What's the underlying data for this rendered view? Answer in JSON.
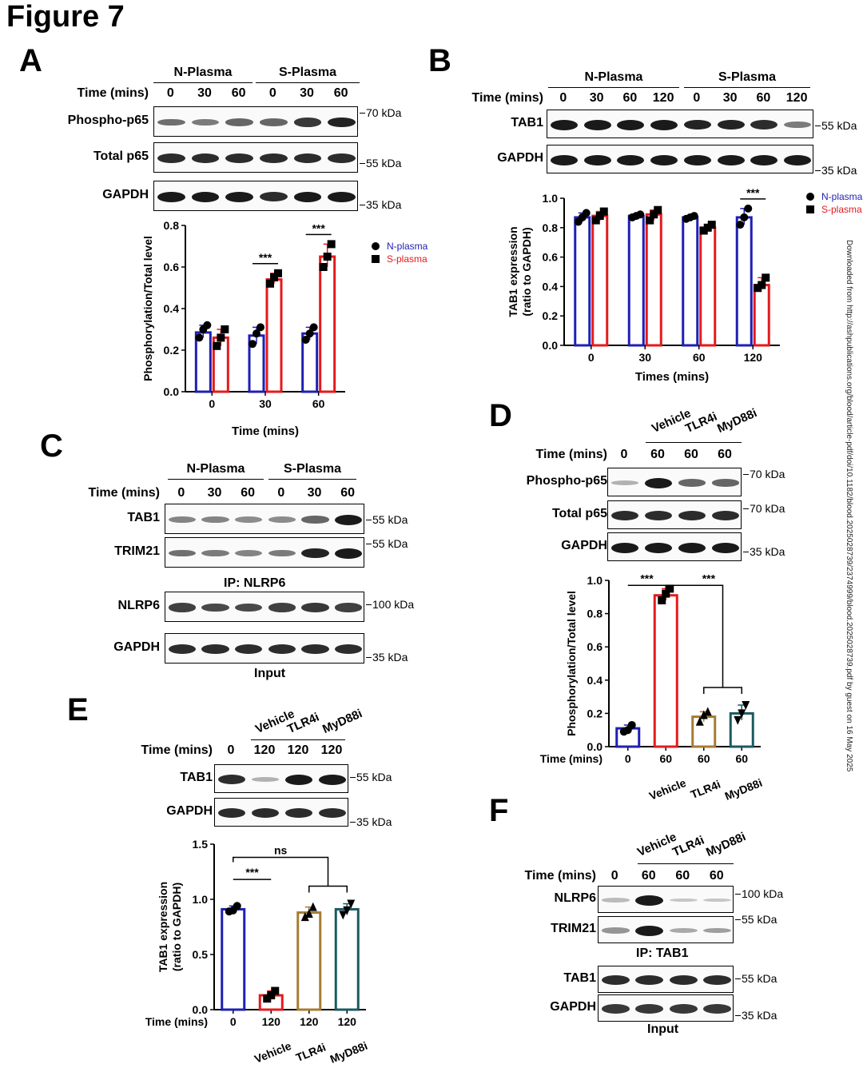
{
  "figure_title": "Figure 7",
  "side_text": "Downloaded from http://ashpublications.org/blood/article-pdf/doi/10.1182/blood.2025028739/2374999/blood.2025028739.pdf by guest on 16 May 2025",
  "panels": {
    "A": {
      "letter": "A",
      "groups": [
        "N-Plasma",
        "S-Plasma"
      ],
      "time_label": "Time (mins)",
      "times": [
        "0",
        "30",
        "60",
        "0",
        "30",
        "60"
      ],
      "rows": [
        {
          "label": "Phospho-p65",
          "kda": "70 kDa",
          "intensity": [
            0.55,
            0.5,
            0.6,
            0.6,
            0.85,
            0.95
          ]
        },
        {
          "label": "Total p65",
          "kda": "55 kDa",
          "intensity": [
            0.9,
            0.9,
            0.9,
            0.9,
            0.9,
            0.9
          ]
        },
        {
          "label": "GAPDH",
          "kda": "35 kDa",
          "intensity": [
            1,
            1,
            1,
            0.9,
            1,
            1
          ]
        }
      ]
    },
    "B": {
      "letter": "B",
      "groups": [
        "N-Plasma",
        "S-Plasma"
      ],
      "time_label": "Time (mins)",
      "times": [
        "0",
        "30",
        "60",
        "120",
        "0",
        "30",
        "60",
        "120"
      ],
      "rows": [
        {
          "label": "TAB1",
          "kda": "55 kDa",
          "intensity": [
            1,
            1,
            1,
            1,
            0.95,
            0.95,
            0.9,
            0.5
          ]
        },
        {
          "label": "GAPDH",
          "kda": "35 kDa",
          "intensity": [
            1,
            1,
            1,
            1,
            1,
            1,
            1,
            1
          ]
        }
      ]
    },
    "C": {
      "letter": "C",
      "groups": [
        "N-Plasma",
        "S-Plasma"
      ],
      "time_label": "Time (mins)",
      "times": [
        "0",
        "30",
        "60",
        "0",
        "30",
        "60"
      ],
      "ip_caption": "IP: NLRP6",
      "input_caption": "Input",
      "rows": [
        {
          "label": "TAB1",
          "kda": "55 kDa",
          "intensity": [
            0.45,
            0.45,
            0.4,
            0.4,
            0.6,
            1
          ]
        },
        {
          "label": "TRIM21",
          "kda": "55 kDa",
          "intensity": [
            0.55,
            0.5,
            0.45,
            0.5,
            0.95,
            1
          ]
        },
        {
          "label": "NLRP6",
          "kda": "100 kDa",
          "intensity": [
            0.8,
            0.75,
            0.75,
            0.8,
            0.85,
            0.8
          ]
        },
        {
          "label": "GAPDH",
          "kda": "35 kDa",
          "intensity": [
            0.9,
            0.9,
            0.9,
            0.9,
            0.9,
            0.9
          ]
        }
      ]
    },
    "D": {
      "letter": "D",
      "treatments": [
        "Vehicle",
        "TLR4i",
        "MyD88i"
      ],
      "time_label": "Time (mins)",
      "times": [
        "0",
        "60",
        "60",
        "60"
      ],
      "rows": [
        {
          "label": "Phospho-p65",
          "kda": "70 kDa",
          "intensity": [
            0.2,
            1,
            0.6,
            0.6
          ]
        },
        {
          "label": "Total p65",
          "kda": "70 kDa",
          "intensity": [
            0.9,
            0.9,
            0.9,
            0.9
          ]
        },
        {
          "label": "GAPDH",
          "kda": "35 kDa",
          "intensity": [
            1,
            1,
            1,
            1
          ]
        }
      ]
    },
    "E": {
      "letter": "E",
      "treatments": [
        "Vehicle",
        "TLR4i",
        "MyD88i"
      ],
      "time_label": "Time (mins)",
      "times": [
        "0",
        "120",
        "120",
        "120"
      ],
      "rows": [
        {
          "label": "TAB1",
          "kda": "55 kDa",
          "intensity": [
            0.9,
            0.2,
            1,
            1
          ]
        },
        {
          "label": "GAPDH",
          "kda": "35 kDa",
          "intensity": [
            0.9,
            0.9,
            0.9,
            0.9
          ]
        }
      ]
    },
    "F": {
      "letter": "F",
      "treatments": [
        "Vehicle",
        "TLR4i",
        "MyD88i"
      ],
      "time_label": "Time (mins)",
      "times": [
        "0",
        "60",
        "60",
        "60"
      ],
      "ip_caption": "IP: TAB1",
      "input_caption": "Input",
      "rows": [
        {
          "label": "NLRP6",
          "kda": "100 kDa",
          "intensity": [
            0.15,
            1,
            0.1,
            0.1
          ]
        },
        {
          "label": "TRIM21",
          "kda": "55 kDa",
          "intensity": [
            0.35,
            1,
            0.25,
            0.3
          ]
        },
        {
          "label": "TAB1",
          "kda": "55 kDa",
          "intensity": [
            0.9,
            0.9,
            0.9,
            0.9
          ]
        },
        {
          "label": "GAPDH",
          "kda": "35 kDa",
          "intensity": [
            0.85,
            0.85,
            0.85,
            0.85
          ]
        }
      ]
    }
  },
  "chart_data": [
    {
      "id": "A",
      "type": "bar",
      "ylabel": "Phosphorylation/Total level",
      "xlabel": "Time (mins)",
      "categories": [
        "0",
        "30",
        "60"
      ],
      "ylim": [
        0,
        0.8
      ],
      "yticks": [
        "0.0",
        "0.2",
        "0.4",
        "0.6",
        "0.8"
      ],
      "legend": [
        "N-plasma",
        "S-plasma"
      ],
      "legend_position": "top-right",
      "series": [
        {
          "name": "N-plasma",
          "color": "#1f1fb4",
          "marker": "circle",
          "values": [
            0.285,
            0.27,
            0.28
          ],
          "points": [
            [
              0.26,
              0.3,
              0.32
            ],
            [
              0.23,
              0.28,
              0.31
            ],
            [
              0.25,
              0.28,
              0.31
            ]
          ]
        },
        {
          "name": "S-plasma",
          "color": "#e41a1c",
          "marker": "square",
          "values": [
            0.26,
            0.54,
            0.65
          ],
          "points": [
            [
              0.22,
              0.26,
              0.3
            ],
            [
              0.52,
              0.55,
              0.57
            ],
            [
              0.6,
              0.65,
              0.71
            ]
          ]
        }
      ],
      "significance": [
        {
          "label": "***",
          "category": "30"
        },
        {
          "label": "***",
          "category": "60"
        }
      ]
    },
    {
      "id": "B",
      "type": "bar",
      "ylabel": "TAB1 expression (ratio to GAPDH)",
      "ylabel_lines": [
        "TAB1 expression",
        "(ratio to GAPDH)"
      ],
      "xlabel": "Times (mins)",
      "categories": [
        "0",
        "30",
        "60",
        "120"
      ],
      "ylim": [
        0,
        1.0
      ],
      "yticks": [
        "0.0",
        "0.2",
        "0.4",
        "0.6",
        "0.8",
        "1.0"
      ],
      "legend": [
        "N-plasma",
        "S-plasma"
      ],
      "legend_position": "top-right",
      "series": [
        {
          "name": "N-plasma",
          "color": "#1f1fb4",
          "marker": "circle",
          "values": [
            0.87,
            0.88,
            0.87,
            0.87
          ],
          "points": [
            [
              0.84,
              0.87,
              0.9
            ],
            [
              0.87,
              0.88,
              0.89
            ],
            [
              0.86,
              0.87,
              0.88
            ],
            [
              0.82,
              0.87,
              0.93
            ]
          ]
        },
        {
          "name": "S-plasma",
          "color": "#e41a1c",
          "marker": "square",
          "values": [
            0.88,
            0.89,
            0.8,
            0.41
          ],
          "points": [
            [
              0.85,
              0.88,
              0.91
            ],
            [
              0.85,
              0.89,
              0.92
            ],
            [
              0.78,
              0.8,
              0.82
            ],
            [
              0.39,
              0.41,
              0.46
            ]
          ]
        }
      ],
      "significance": [
        {
          "label": "***",
          "category": "120"
        }
      ]
    },
    {
      "id": "D",
      "type": "bar",
      "ylabel": "Phosphorylation/Total level",
      "xlabel": "Time (mins)",
      "categories": [
        "0",
        "60",
        "60",
        "60"
      ],
      "category_treatments": [
        "",
        "Vehicle",
        "TLR4i",
        "MyD88i"
      ],
      "ylim": [
        0,
        1.0
      ],
      "yticks": [
        "0.0",
        "0.2",
        "0.4",
        "0.6",
        "0.8",
        "1.0"
      ],
      "series": [
        {
          "name": "",
          "colors": [
            "#1f1fb4",
            "#e41a1c",
            "#a67c33",
            "#1a5a60"
          ],
          "markers": [
            "circle",
            "square",
            "triangle",
            "triangle-down"
          ],
          "values": [
            0.11,
            0.91,
            0.18,
            0.2
          ],
          "points": [
            [
              0.09,
              0.1,
              0.13
            ],
            [
              0.88,
              0.92,
              0.95
            ],
            [
              0.15,
              0.19,
              0.21
            ],
            [
              0.16,
              0.2,
              0.25
            ]
          ]
        }
      ],
      "significance": [
        {
          "label": "***",
          "from": 0,
          "to": 1
        },
        {
          "label": "***",
          "from": 1,
          "to": [
            2,
            3
          ]
        }
      ]
    },
    {
      "id": "E",
      "type": "bar",
      "ylabel": "TAB1 expression (ratio to GAPDH)",
      "ylabel_lines": [
        "TAB1 expression",
        "(ratio to GAPDH)"
      ],
      "xlabel": "Time (mins)",
      "categories": [
        "0",
        "120",
        "120",
        "120"
      ],
      "category_treatments": [
        "",
        "Vehicle",
        "TLR4i",
        "MyD88i"
      ],
      "ylim": [
        0,
        1.5
      ],
      "yticks": [
        "0.0",
        "0.5",
        "1.0",
        "1.5"
      ],
      "series": [
        {
          "name": "",
          "colors": [
            "#1f1fb4",
            "#e41a1c",
            "#a67c33",
            "#1a5a60"
          ],
          "markers": [
            "circle",
            "square",
            "triangle",
            "triangle-down"
          ],
          "values": [
            0.91,
            0.13,
            0.88,
            0.91
          ],
          "points": [
            [
              0.89,
              0.9,
              0.94
            ],
            [
              0.1,
              0.13,
              0.17
            ],
            [
              0.84,
              0.87,
              0.93
            ],
            [
              0.86,
              0.9,
              0.96
            ]
          ]
        }
      ],
      "significance": [
        {
          "label": "***",
          "from": 0,
          "to": 1
        },
        {
          "label": "ns",
          "from": 0,
          "to": [
            2,
            3
          ]
        }
      ]
    }
  ]
}
